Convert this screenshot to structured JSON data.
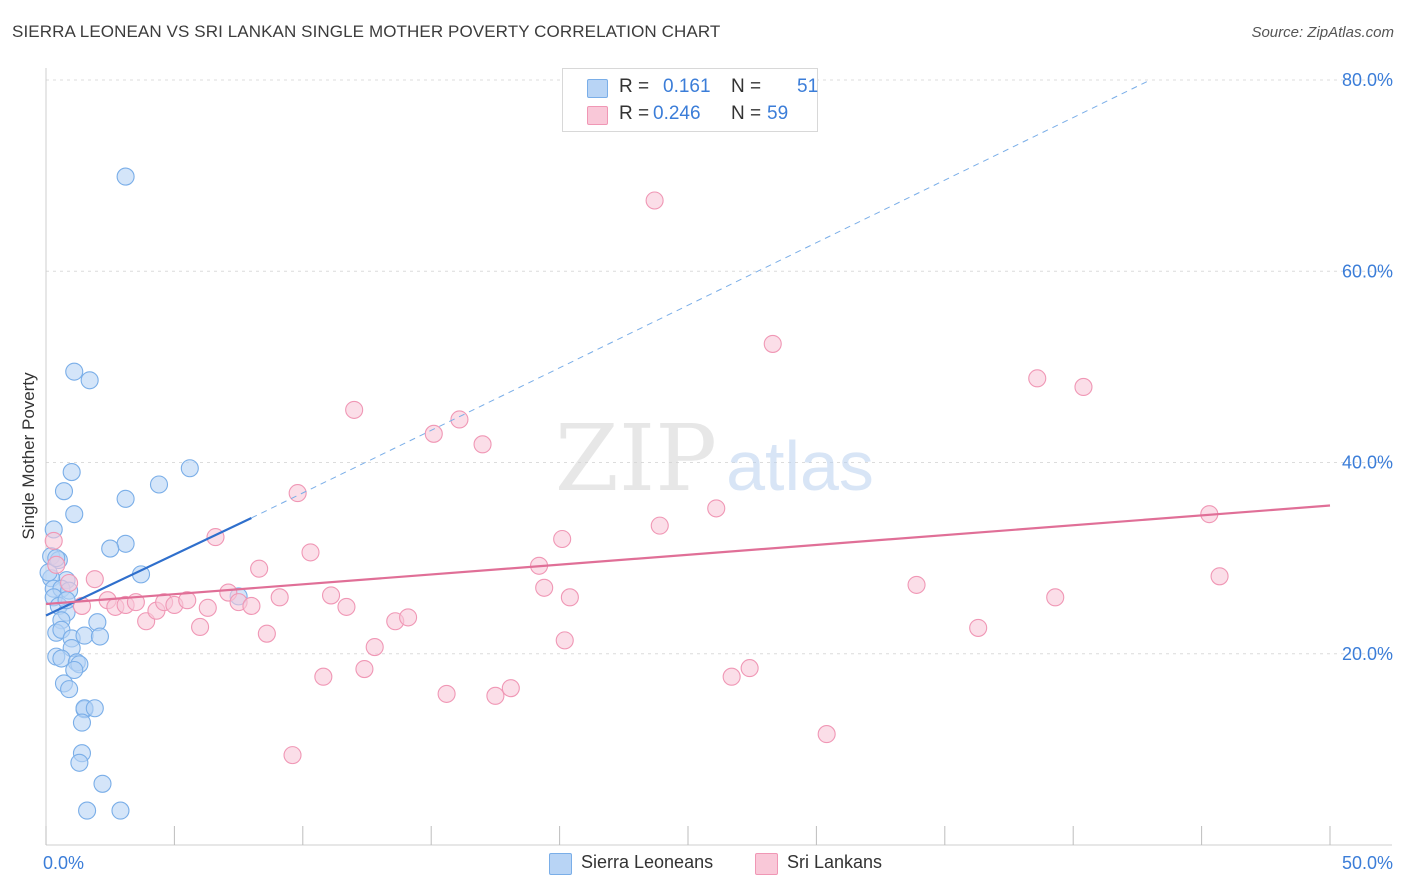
{
  "title": "SIERRA LEONEAN VS SRI LANKAN SINGLE MOTHER POVERTY CORRELATION CHART",
  "source": "Source: ZipAtlas.com",
  "watermark": {
    "zip": "ZIP",
    "atlas": "atlas"
  },
  "legend": {
    "r_label": "R =",
    "n_label": "N =",
    "rows": [
      {
        "name": "Sierra Leoneans",
        "r": "0.161",
        "n": "51",
        "fill": "#b8d4f5",
        "stroke": "#7aaee8"
      },
      {
        "name": "Sri Lankans",
        "r": "0.246",
        "n": "59",
        "fill": "#f9c8d8",
        "stroke": "#f097b5"
      }
    ]
  },
  "chart_data": {
    "type": "scatter",
    "xlabel": "",
    "ylabel": "Single Mother Poverty",
    "xlim": [
      0,
      50
    ],
    "ylim": [
      0,
      80
    ],
    "x_tick_labels": [
      {
        "value": 0,
        "label": "0.0%"
      },
      {
        "value": 50,
        "label": "50.0%"
      }
    ],
    "y_tick_labels": [
      {
        "value": 20,
        "label": "20.0%"
      },
      {
        "value": 40,
        "label": "40.0%"
      },
      {
        "value": 60,
        "label": "60.0%"
      },
      {
        "value": 80,
        "label": "80.0%"
      }
    ],
    "grid": true,
    "series": [
      {
        "name": "Sierra Leoneans",
        "color": "#7aaee8",
        "fill": "#b8d4f5",
        "trend": {
          "x0": 0,
          "y0": 24.0,
          "x1": 8.0,
          "y1": 34.2,
          "solid_to": 8.0,
          "dashed_to_x": 43.0,
          "dashed_to_y": 80.0,
          "line_color": "#2f6fcc"
        },
        "points": [
          [
            3.1,
            69.9
          ],
          [
            1.1,
            49.5
          ],
          [
            1.7,
            48.6
          ],
          [
            1.0,
            39.0
          ],
          [
            5.6,
            39.4
          ],
          [
            0.7,
            37.0
          ],
          [
            4.4,
            37.7
          ],
          [
            3.1,
            36.2
          ],
          [
            1.1,
            34.6
          ],
          [
            0.3,
            33.0
          ],
          [
            3.1,
            31.5
          ],
          [
            2.5,
            31.0
          ],
          [
            0.2,
            30.2
          ],
          [
            0.5,
            29.8
          ],
          [
            0.8,
            27.7
          ],
          [
            0.2,
            27.9
          ],
          [
            0.3,
            26.8
          ],
          [
            0.6,
            26.8
          ],
          [
            0.9,
            26.6
          ],
          [
            3.7,
            28.3
          ],
          [
            0.3,
            25.9
          ],
          [
            0.5,
            25.0
          ],
          [
            0.8,
            24.3
          ],
          [
            0.6,
            23.5
          ],
          [
            2.0,
            23.3
          ],
          [
            0.4,
            22.2
          ],
          [
            0.6,
            22.5
          ],
          [
            1.0,
            21.6
          ],
          [
            1.5,
            21.9
          ],
          [
            2.1,
            21.8
          ],
          [
            1.0,
            20.6
          ],
          [
            0.4,
            19.7
          ],
          [
            0.6,
            19.5
          ],
          [
            1.2,
            19.1
          ],
          [
            1.3,
            18.9
          ],
          [
            1.1,
            18.3
          ],
          [
            0.7,
            16.9
          ],
          [
            0.9,
            16.3
          ],
          [
            1.5,
            14.2
          ],
          [
            1.5,
            14.3
          ],
          [
            1.4,
            12.8
          ],
          [
            1.4,
            9.6
          ],
          [
            1.3,
            8.6
          ],
          [
            2.2,
            6.4
          ],
          [
            1.6,
            3.6
          ],
          [
            2.9,
            3.6
          ],
          [
            7.5,
            26.0
          ],
          [
            0.1,
            28.5
          ],
          [
            0.4,
            30.0
          ],
          [
            1.9,
            14.3
          ],
          [
            0.8,
            25.6
          ]
        ]
      },
      {
        "name": "Sri Lankans",
        "color": "#f097b5",
        "fill": "#f9c8d8",
        "trend": {
          "x0": 0,
          "y0": 25.2,
          "x1": 50,
          "y1": 35.5,
          "line_color": "#e06f97"
        },
        "points": [
          [
            0.3,
            31.8
          ],
          [
            0.4,
            29.3
          ],
          [
            0.9,
            27.4
          ],
          [
            1.9,
            27.8
          ],
          [
            1.4,
            25.0
          ],
          [
            2.4,
            25.6
          ],
          [
            2.7,
            24.9
          ],
          [
            3.1,
            25.1
          ],
          [
            3.5,
            25.4
          ],
          [
            3.9,
            23.4
          ],
          [
            4.3,
            24.5
          ],
          [
            4.6,
            25.4
          ],
          [
            5.0,
            25.1
          ],
          [
            5.5,
            25.6
          ],
          [
            6.0,
            22.8
          ],
          [
            6.3,
            24.8
          ],
          [
            6.6,
            32.2
          ],
          [
            7.1,
            26.4
          ],
          [
            7.5,
            25.4
          ],
          [
            8.0,
            25.0
          ],
          [
            8.3,
            28.9
          ],
          [
            8.6,
            22.1
          ],
          [
            9.1,
            25.9
          ],
          [
            9.6,
            9.4
          ],
          [
            9.8,
            36.8
          ],
          [
            10.3,
            30.6
          ],
          [
            10.8,
            17.6
          ],
          [
            11.1,
            26.1
          ],
          [
            11.7,
            24.9
          ],
          [
            12.0,
            45.5
          ],
          [
            12.4,
            18.4
          ],
          [
            12.8,
            20.7
          ],
          [
            13.6,
            23.4
          ],
          [
            14.1,
            23.8
          ],
          [
            15.1,
            43.0
          ],
          [
            15.6,
            15.8
          ],
          [
            16.1,
            44.5
          ],
          [
            17.0,
            41.9
          ],
          [
            17.5,
            15.6
          ],
          [
            18.1,
            16.4
          ],
          [
            19.2,
            29.2
          ],
          [
            19.4,
            26.9
          ],
          [
            20.1,
            32.0
          ],
          [
            20.2,
            21.4
          ],
          [
            20.4,
            25.9
          ],
          [
            23.7,
            67.4
          ],
          [
            23.9,
            33.4
          ],
          [
            26.1,
            35.2
          ],
          [
            26.7,
            17.6
          ],
          [
            27.4,
            18.5
          ],
          [
            28.3,
            52.4
          ],
          [
            30.4,
            11.6
          ],
          [
            33.9,
            27.2
          ],
          [
            36.3,
            22.7
          ],
          [
            38.6,
            48.8
          ],
          [
            39.3,
            25.9
          ],
          [
            40.4,
            47.9
          ],
          [
            45.7,
            28.1
          ],
          [
            45.3,
            34.6
          ]
        ]
      }
    ]
  }
}
